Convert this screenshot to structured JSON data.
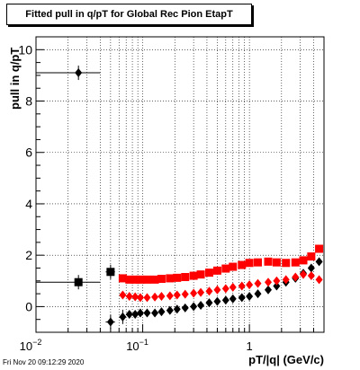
{
  "chart_data": {
    "type": "scatter",
    "title": "Fitted pull in q/pT for Global Rec Pion EtapT",
    "xlabel": "pT/|q| (GeV/c)",
    "ylabel": "pull in q/pT",
    "xscale": "log",
    "xlim": [
      0.01,
      5.0
    ],
    "ylim": [
      -1.0,
      10.5
    ],
    "grid": true,
    "x_tick_labels": [
      "10^-2",
      "10^-1",
      "1"
    ],
    "y_ticks": [
      0,
      2,
      4,
      6,
      8,
      10
    ],
    "series": [
      {
        "marker": "diamond",
        "color": "#000000",
        "x": [
          0.025,
          0.05,
          0.065,
          0.075,
          0.085,
          0.095,
          0.11,
          0.13,
          0.15,
          0.18,
          0.21,
          0.25,
          0.3,
          0.35,
          0.42,
          0.5,
          0.6,
          0.7,
          0.85,
          1.0,
          1.2,
          1.5,
          1.8,
          2.2,
          2.7,
          3.2,
          3.8,
          4.5
        ],
        "y": [
          9.1,
          -0.6,
          -0.4,
          -0.3,
          -0.3,
          -0.25,
          -0.25,
          -0.25,
          -0.2,
          -0.15,
          -0.1,
          -0.05,
          0.0,
          0.05,
          0.15,
          0.2,
          0.25,
          0.3,
          0.35,
          0.4,
          0.5,
          0.65,
          0.8,
          0.95,
          1.1,
          1.3,
          1.5,
          1.75
        ],
        "xerr": [
          0.015,
          0.005,
          0.004,
          0,
          0,
          0,
          0,
          0,
          0,
          0,
          0,
          0,
          0,
          0,
          0,
          0,
          0,
          0,
          0,
          0,
          0,
          0,
          0,
          0,
          0,
          0,
          0,
          0
        ]
      },
      {
        "marker": "square",
        "color": "#000000",
        "x": [
          0.025,
          0.05
        ],
        "y": [
          0.95,
          1.35
        ],
        "xerr": [
          0.015,
          0.005
        ]
      },
      {
        "marker": "diamond",
        "color": "#ff0000",
        "x": [
          0.065,
          0.075,
          0.085,
          0.095,
          0.11,
          0.13,
          0.15,
          0.18,
          0.21,
          0.25,
          0.3,
          0.35,
          0.42,
          0.5,
          0.6,
          0.7,
          0.85,
          1.0,
          1.2,
          1.5,
          1.8,
          2.2,
          2.7,
          3.2,
          3.8,
          4.5
        ],
        "y": [
          0.45,
          0.4,
          0.38,
          0.35,
          0.35,
          0.37,
          0.4,
          0.42,
          0.45,
          0.48,
          0.52,
          0.55,
          0.6,
          0.65,
          0.7,
          0.75,
          0.8,
          0.85,
          0.9,
          0.95,
          1.0,
          1.05,
          1.15,
          1.25,
          1.2,
          1.05
        ]
      },
      {
        "marker": "square",
        "color": "#ff0000",
        "x": [
          0.065,
          0.075,
          0.085,
          0.095,
          0.11,
          0.13,
          0.15,
          0.18,
          0.21,
          0.25,
          0.3,
          0.35,
          0.42,
          0.5,
          0.6,
          0.7,
          0.85,
          1.0,
          1.2,
          1.5,
          1.8,
          2.2,
          2.7,
          3.2,
          3.8,
          4.5
        ],
        "y": [
          1.1,
          1.05,
          1.05,
          1.05,
          1.05,
          1.05,
          1.08,
          1.1,
          1.12,
          1.15,
          1.2,
          1.25,
          1.32,
          1.4,
          1.48,
          1.55,
          1.62,
          1.7,
          1.72,
          1.75,
          1.72,
          1.7,
          1.72,
          1.8,
          1.95,
          2.25
        ]
      }
    ]
  },
  "timestamp": "Fri Nov 20 09:12:29 2020"
}
